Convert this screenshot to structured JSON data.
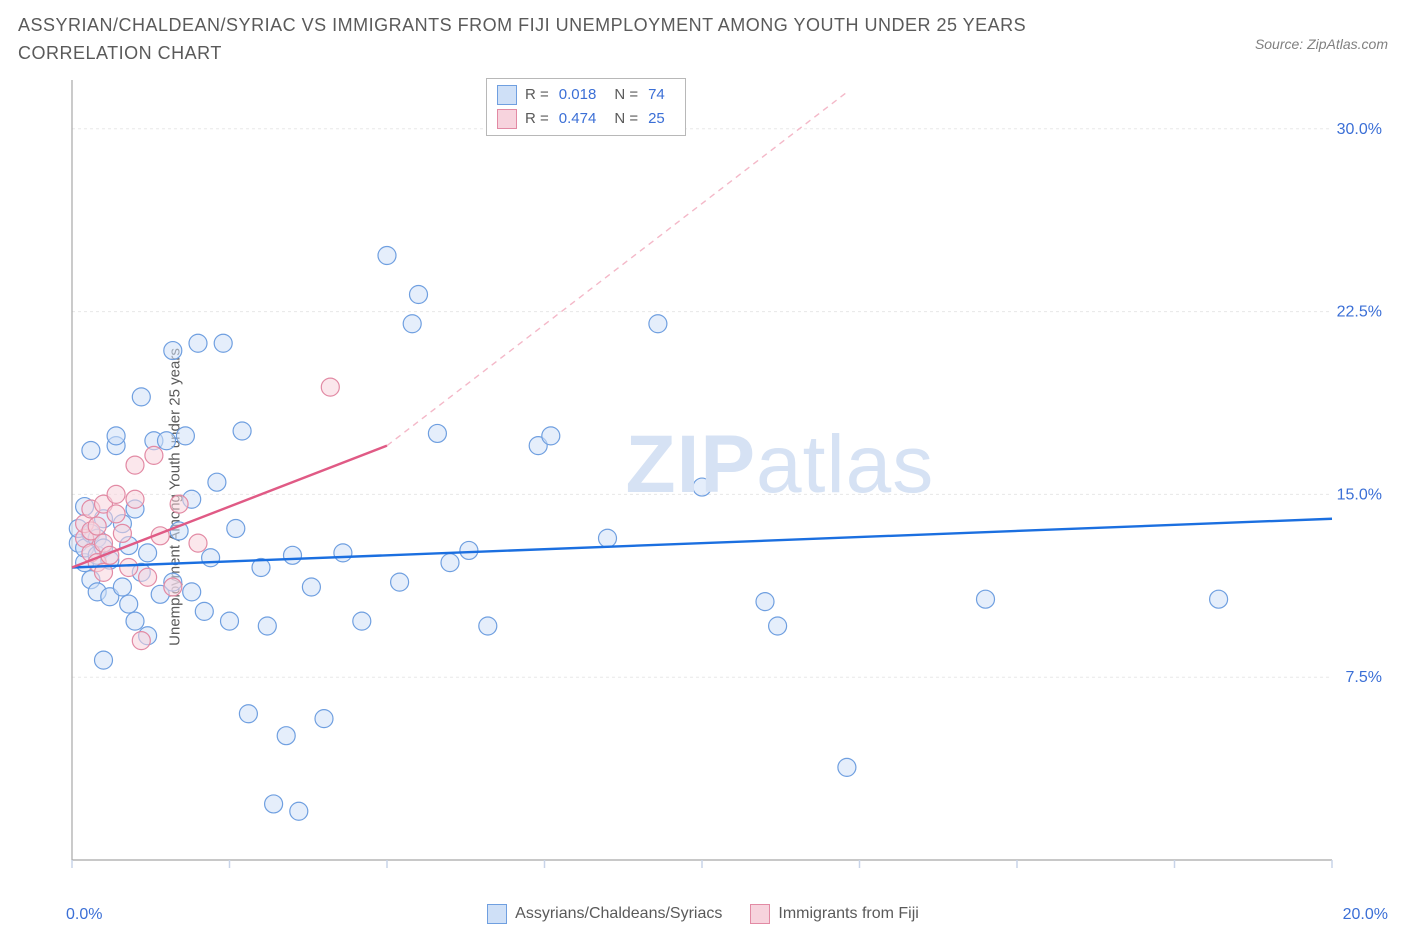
{
  "title": "ASSYRIAN/CHALDEAN/SYRIAC VS IMMIGRANTS FROM FIJI UNEMPLOYMENT AMONG YOUTH UNDER 25 YEARS CORRELATION CHART",
  "source": "Source: ZipAtlas.com",
  "ylabel": "Unemployment Among Youth under 25 years",
  "watermark_strong": "ZIP",
  "watermark_light": "atlas",
  "chart": {
    "type": "scatter",
    "xlim": [
      0,
      20
    ],
    "ylim": [
      0,
      32
    ],
    "ytick_values": [
      7.5,
      15.0,
      22.5,
      30.0
    ],
    "ytick_labels": [
      "7.5%",
      "15.0%",
      "22.5%",
      "30.0%"
    ],
    "xtick_values": [
      0,
      2.5,
      5,
      7.5,
      10,
      12.5,
      15,
      17.5,
      20
    ],
    "xaxis_left_label": "0.0%",
    "xaxis_right_label": "20.0%",
    "grid_color": "#e8e8e8",
    "axis_color": "#a8a8a8",
    "tick_color": "#c8d4e8",
    "background_color": "#ffffff",
    "marker_radius": 9,
    "marker_stroke_width": 1.2,
    "series": [
      {
        "name": "Assyrians/Chaldeans/Syriacs",
        "fill": "#cfe0f7",
        "stroke": "#6f9fe0",
        "fill_opacity": 0.55,
        "R": "0.018",
        "N": "74",
        "trend": {
          "x1": 0,
          "y1": 12.0,
          "x2": 20,
          "y2": 14.0,
          "color": "#1b6fe0",
          "width": 2.4
        },
        "points": [
          [
            0.1,
            13.0
          ],
          [
            0.1,
            13.6
          ],
          [
            0.2,
            12.2
          ],
          [
            0.2,
            12.8
          ],
          [
            0.2,
            14.5
          ],
          [
            0.3,
            11.5
          ],
          [
            0.3,
            13.4
          ],
          [
            0.3,
            16.8
          ],
          [
            0.4,
            11.0
          ],
          [
            0.4,
            12.5
          ],
          [
            0.4,
            13.2
          ],
          [
            0.5,
            8.2
          ],
          [
            0.5,
            12.8
          ],
          [
            0.5,
            14.0
          ],
          [
            0.6,
            10.8
          ],
          [
            0.6,
            12.3
          ],
          [
            0.7,
            17.0
          ],
          [
            0.7,
            17.4
          ],
          [
            0.8,
            11.2
          ],
          [
            0.8,
            13.8
          ],
          [
            0.9,
            10.5
          ],
          [
            0.9,
            12.9
          ],
          [
            1.0,
            9.8
          ],
          [
            1.0,
            14.4
          ],
          [
            1.1,
            11.8
          ],
          [
            1.1,
            19.0
          ],
          [
            1.2,
            9.2
          ],
          [
            1.2,
            12.6
          ],
          [
            1.3,
            17.2
          ],
          [
            1.4,
            10.9
          ],
          [
            1.5,
            17.2
          ],
          [
            1.6,
            11.4
          ],
          [
            1.6,
            20.9
          ],
          [
            1.7,
            13.5
          ],
          [
            1.8,
            17.4
          ],
          [
            1.9,
            11.0
          ],
          [
            1.9,
            14.8
          ],
          [
            2.0,
            21.2
          ],
          [
            2.1,
            10.2
          ],
          [
            2.2,
            12.4
          ],
          [
            2.3,
            15.5
          ],
          [
            2.4,
            21.2
          ],
          [
            2.5,
            9.8
          ],
          [
            2.6,
            13.6
          ],
          [
            2.7,
            17.6
          ],
          [
            2.8,
            6.0
          ],
          [
            3.0,
            12.0
          ],
          [
            3.1,
            9.6
          ],
          [
            3.2,
            2.3
          ],
          [
            3.4,
            5.1
          ],
          [
            3.5,
            12.5
          ],
          [
            3.6,
            2.0
          ],
          [
            3.8,
            11.2
          ],
          [
            4.0,
            5.8
          ],
          [
            4.3,
            12.6
          ],
          [
            4.6,
            9.8
          ],
          [
            5.0,
            24.8
          ],
          [
            5.2,
            11.4
          ],
          [
            5.4,
            22.0
          ],
          [
            5.5,
            23.2
          ],
          [
            5.8,
            17.5
          ],
          [
            6.0,
            12.2
          ],
          [
            6.3,
            12.7
          ],
          [
            6.6,
            9.6
          ],
          [
            7.4,
            17.0
          ],
          [
            7.6,
            17.4
          ],
          [
            8.5,
            13.2
          ],
          [
            9.3,
            22.0
          ],
          [
            10.0,
            15.3
          ],
          [
            11.0,
            10.6
          ],
          [
            11.2,
            9.6
          ],
          [
            12.3,
            3.8
          ],
          [
            14.5,
            10.7
          ],
          [
            18.2,
            10.7
          ]
        ]
      },
      {
        "name": "Immigrants from Fiji",
        "fill": "#f7d3dd",
        "stroke": "#e28aa4",
        "fill_opacity": 0.55,
        "R": "0.474",
        "N": "25",
        "trend_solid": {
          "x1": 0,
          "y1": 12.0,
          "x2": 5.0,
          "y2": 17.0,
          "color": "#e05a85",
          "width": 2.4
        },
        "trend_dashed": {
          "x1": 5.0,
          "y1": 17.0,
          "x2": 12.3,
          "y2": 31.5,
          "color": "#f4b8c8",
          "width": 1.4
        },
        "points": [
          [
            0.2,
            13.2
          ],
          [
            0.2,
            13.8
          ],
          [
            0.3,
            12.6
          ],
          [
            0.3,
            13.5
          ],
          [
            0.3,
            14.4
          ],
          [
            0.4,
            12.2
          ],
          [
            0.4,
            13.7
          ],
          [
            0.5,
            11.8
          ],
          [
            0.5,
            13.0
          ],
          [
            0.5,
            14.6
          ],
          [
            0.6,
            12.5
          ],
          [
            0.7,
            14.2
          ],
          [
            0.7,
            15.0
          ],
          [
            0.8,
            13.4
          ],
          [
            0.9,
            12.0
          ],
          [
            1.0,
            14.8
          ],
          [
            1.0,
            16.2
          ],
          [
            1.1,
            9.0
          ],
          [
            1.2,
            11.6
          ],
          [
            1.3,
            16.6
          ],
          [
            1.4,
            13.3
          ],
          [
            1.6,
            11.2
          ],
          [
            1.7,
            14.6
          ],
          [
            2.0,
            13.0
          ],
          [
            4.1,
            19.4
          ]
        ]
      }
    ]
  },
  "legend_top": {
    "r_label": "R =",
    "n_label": "N ="
  },
  "legend_bottom": [
    {
      "label": "Assyrians/Chaldeans/Syriacs",
      "fill": "#cfe0f7",
      "stroke": "#6f9fe0"
    },
    {
      "label": "Immigrants from Fiji",
      "fill": "#f7d3dd",
      "stroke": "#e28aa4"
    }
  ]
}
